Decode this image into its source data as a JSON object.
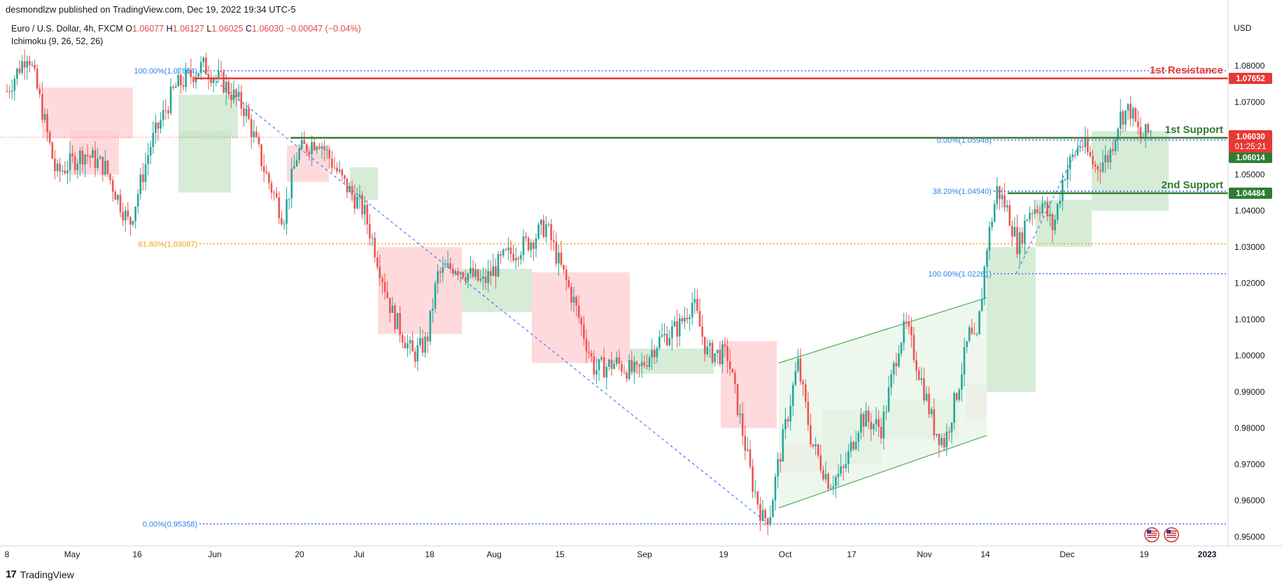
{
  "header": {
    "publisher": "desmondlzw published on TradingView.com, Dec 19, 2022 19:34 UTC-5",
    "symbol": "Euro / U.S. Dollar, 4h, FXCM",
    "open_label": "O",
    "open": "1.06077",
    "high_label": "H",
    "high": "1.06127",
    "low_label": "L",
    "low": "1.06025",
    "close_label": "C",
    "close": "1.06030",
    "change": "−0.00047 (−0.04%)",
    "indicator": "Ichimoku (9, 26, 52, 26)",
    "currency": "USD"
  },
  "footer": {
    "brand": "TradingView",
    "logo_glyph": "17"
  },
  "colors": {
    "up": "#26a69a",
    "down": "#ef5350",
    "resistance": "#e53935",
    "support": "#2e7d32",
    "fib": "#2962ff",
    "fib_text": "#2f80ed",
    "fib618": "#f59d0c",
    "cloud_up": "#c8e6c9",
    "cloud_down": "#ffcdd2",
    "channel": "#4caf50",
    "channel_fill": "#e8f5e9"
  },
  "chart_data": {
    "type": "candlestick",
    "timeframe": "4h",
    "ylim": [
      0.947,
      1.086
    ],
    "x_tick_labels": [
      "8",
      "May",
      "16",
      "Jun",
      "20",
      "Jul",
      "18",
      "Aug",
      "15",
      "Sep",
      "19",
      "Oct",
      "17",
      "Nov",
      "14",
      "Dec",
      "19",
      "2023"
    ],
    "y_tick_labels": [
      "1.08000",
      "1.07000",
      "1.06000",
      "1.05000",
      "1.04000",
      "1.03000",
      "1.02000",
      "1.01000",
      "1.00000",
      "0.99000",
      "0.98000",
      "0.97000",
      "0.96000",
      "0.95000"
    ],
    "horizontal_levels": [
      {
        "label": "1st Resistance",
        "price": 1.07652,
        "tag": "1.07652",
        "role": "resistance"
      },
      {
        "label": "1st Support",
        "price": 1.06014,
        "tag": "1.06014",
        "role": "support"
      },
      {
        "label": "2nd Support",
        "price": 1.04484,
        "tag": "1.04484",
        "role": "support"
      }
    ],
    "last_price": {
      "price": 1.0603,
      "tag": "1.06030",
      "countdown": "01:25:21"
    },
    "fib_levels": [
      {
        "text": "100.00%(1.07864)",
        "price": 1.07864,
        "set": "A"
      },
      {
        "text": "61.80%(1.03087)",
        "price": 1.03087,
        "set": "A"
      },
      {
        "text": "0.00%(0.95358)",
        "price": 0.95358,
        "set": "A"
      },
      {
        "text": "0.00%(1.05948)",
        "price": 1.05948,
        "set": "B"
      },
      {
        "text": "38.20%(1.04540)",
        "price": 1.0454,
        "set": "B"
      },
      {
        "text": "100.00%(1.02261)",
        "price": 1.02261,
        "set": "B"
      }
    ],
    "approx_close_path": [
      [
        "8",
        1.075
      ],
      [
        "May",
        1.06
      ],
      [
        "May",
        1.05
      ],
      [
        "16",
        1.04
      ],
      [
        "16",
        1.036
      ],
      [
        "Jun",
        1.072
      ],
      [
        "Jun",
        1.078
      ],
      [
        "20",
        1.05
      ],
      [
        "20",
        1.052
      ],
      [
        "Jul",
        1.04
      ],
      [
        "Jul",
        1.01
      ],
      [
        "18",
        1.0
      ],
      [
        "18",
        1.02
      ],
      [
        "Aug",
        1.025
      ],
      [
        "15",
        1.036
      ],
      [
        "15",
        1.02
      ],
      [
        "Sep",
        1.0
      ],
      [
        "Sep",
        0.995
      ],
      [
        "19",
        1.005
      ],
      [
        "19",
        0.97
      ],
      [
        "Oct",
        0.957
      ],
      [
        "Oct",
        0.985
      ],
      [
        "17",
        0.97
      ],
      [
        "17",
        0.98
      ],
      [
        "Nov",
        0.995
      ],
      [
        "Nov",
        0.98
      ],
      [
        "14",
        1.035
      ],
      [
        "14",
        1.04
      ],
      [
        "Dec",
        1.05
      ],
      [
        "Dec",
        1.055
      ],
      [
        "19",
        1.068
      ],
      [
        "19",
        1.06
      ]
    ],
    "ascending_channel": {
      "start": [
        "Oct",
        0.998,
        0.958
      ],
      "end": [
        "14",
        1.016,
        0.978
      ]
    },
    "event_icons": [
      "us-flag-icon",
      "us-flag-icon"
    ]
  }
}
